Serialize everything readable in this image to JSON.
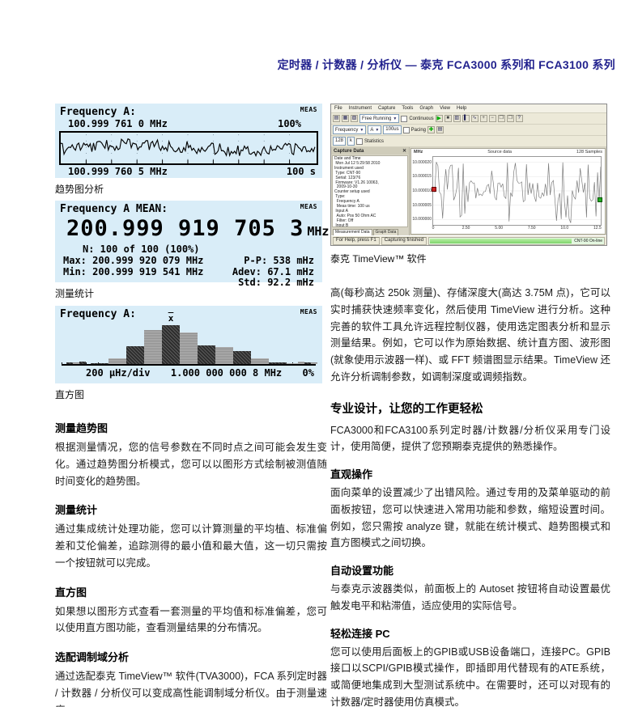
{
  "page": {
    "title": "定时器 / 计数器 / 分析仪 — 泰克 FCA3000 系列和 FCA3100 系列"
  },
  "screens": {
    "trend": {
      "label": "Frequency A:",
      "meas": "MEAS",
      "top_value": "100.999 761 0 MHz",
      "top_pct": "100%",
      "bottom_value": "100.999 760 5 MHz",
      "bottom_time": "100 s",
      "caption": "趋势图分析"
    },
    "stats": {
      "label": "Frequency A MEAN:",
      "meas": "MEAS",
      "big_value": "200.999 919 705 3",
      "big_unit": "MHz",
      "n_line": "N: 100 of 100 (100%)",
      "max_line": "Max: 200.999 920 079 MHz",
      "min_line": "Min: 200.999 919 541 MHz",
      "pp_line": "P-P: 538 mHz",
      "adev_line": "Adev: 67.1 mHz",
      "std_line": "Std: 92.2 mHz",
      "caption": "测量统计"
    },
    "hist": {
      "label": "Frequency A:",
      "meas": "MEAS",
      "mean_marker": "x",
      "axis_left": "200 μHz/div",
      "axis_center": "1.000 000 000 8 MHz",
      "axis_right": "0%",
      "caption": "直方图"
    }
  },
  "timeview": {
    "menu": [
      "File",
      "Instrument",
      "Capture",
      "Tools",
      "Graph",
      "View",
      "Help"
    ],
    "toolbar": {
      "mode": "Free Running",
      "continuous": "Continuous",
      "function": "Frequency",
      "channel": "A",
      "meas_time": "100us",
      "pacing": "Pacing",
      "samples": "128",
      "unit": "k",
      "statistics": "Statistics"
    },
    "panel": {
      "title": "Capture Data",
      "lines": [
        "Date and Time",
        " Mon Jul 12 5:29:58 2010",
        "Instrument used",
        " Type: CNT-90",
        " Serial: 123/76",
        " Firmware: V1.26 10063,",
        "  2009-10-30",
        "Counter setup used",
        " Type:",
        "  Frequency A",
        "  Meas time: 100 us",
        " Input A",
        "  Auto: Pos 50 Ohm AC",
        "  Filter: Off",
        " Input B",
        "  Auto: Pos 50 Ohm AC",
        "  Filter: Off",
        " External timing:",
        "  Off",
        " Hold Off:",
        "  Off",
        " Statistics:",
        "  Off",
        " Miscellaneous:",
        "  Reference Oscillator:",
        "   Auto"
      ]
    },
    "graph": {
      "unit": "MHz",
      "title": "Source data",
      "right": "128 Samples",
      "y_ticks": [
        "10.000020",
        "10.000015",
        "10.000010",
        "10.000005",
        "10.000000"
      ],
      "x_ticks": [
        "0",
        "2.50",
        "5.00",
        "7.50",
        "10.0",
        "12.5"
      ]
    },
    "tabs": [
      "Measurement Data",
      "Graph Data"
    ],
    "status": {
      "help": "For Help, press F1",
      "mid": "Capturing finished",
      "device": "CNT-90 On-line"
    },
    "caption": "泰克 TimeView™ 软件"
  },
  "left_sections": [
    {
      "heading": "测量趋势图",
      "body": "根据测量情况，您的信号参数在不同时点之间可能会发生变化。通过趋势图分析模式，您可以以图形方式绘制被测值随时间变化的趋势图。"
    },
    {
      "heading": "测量统计",
      "body": "通过集成统计处理功能，您可以计算测量的平均植、标准偏差和艾伦偏差，追踪测得的最小值和最大值，这一切只需按一个按钮就可以完成。"
    },
    {
      "heading": "直方图",
      "body": "如果想以图形方式查看一套测量的平均值和标准偏差，您可以使用直方图功能，查看测量结果的分布情况。"
    },
    {
      "heading": "选配调制域分析",
      "body": "通过选配泰克 TimeView™ 软件(TVA3000)，FCA 系列定时器 / 计数器 / 分析仪可以变成高性能调制域分析仪。由于测量速度"
    }
  ],
  "right": {
    "intro": "高(每秒高达 250k 测量)、存储深度大(高达 3.75M 点)，它可以实时捕获快速频率变化，然后使用 TimeView 进行分析。这种完善的软件工具允许远程控制仪器，使用选定图表分析和显示测量结果。例如，它可以作为原始数据、统计直方图、波形图(就象使用示波器一样)、或 FFT 频谱图显示结果。TimeView 还允许分析调制参数，如调制深度或调频指数。",
    "heading": "专业设计，让您的工作更轻松",
    "body": "FCA3000和FCA3100系列定时器/计数器/分析仪采用专门设计，使用简便，提供了您预期泰克提供的熟悉操作。",
    "subs": [
      {
        "heading": "直观操作",
        "body": "面向菜单的设置减少了出错风险。通过专用的及菜单驱动的前面板按钮，您可以快速进入常用功能和参数，缩短设置时间。例如，您只需按 analyze 键，就能在统计模式、趋势图模式和直方图模式之间切换。"
      },
      {
        "heading": "自动设置功能",
        "body": "与泰克示波器类似，前面板上的 Autoset 按钮将自动设置最优触发电平和粘滞值，适应使用的实际信号。"
      },
      {
        "heading": "轻松连接 PC",
        "body": "您可以使用后面板上的GPIB或USB设备端口，连接PC。GPIB接口以SCPI/GPIB模式操作，即插即用代替现有的ATE系统，或简便地集成到大型测试系统中。在需要时，还可以对现有的计数器/定时器使用仿真模式。"
      }
    ]
  },
  "chart_data": [
    {
      "type": "line",
      "title": "Frequency A trend plot",
      "y_top_label": "100.999 761 0 MHz",
      "y_bottom_label": "100.999 760 5 MHz",
      "x_span": "100 s",
      "right_top_label": "100%",
      "note": "noisy frequency-vs-time trace meandering between the two labelled frequency limits"
    },
    {
      "type": "bar",
      "title": "Frequency A histogram",
      "x_scale": "200 μHz/div",
      "x_center": "1.000 000 000 8 MHz",
      "right_label": "0%",
      "values": [
        3,
        14,
        45,
        85,
        96,
        78,
        46,
        42,
        33,
        15,
        4,
        2
      ],
      "bar_styles": [
        "d",
        "g",
        "d",
        "g",
        "d",
        "g",
        "d",
        "g",
        "d",
        "g",
        "d",
        "g"
      ],
      "mean_index": 4
    },
    {
      "type": "line",
      "title": "TimeView Source data",
      "ylabel": "MHz",
      "y_ticks": [
        "10.000020",
        "10.000015",
        "10.000010",
        "10.000005",
        "10.000000"
      ],
      "x_ticks": [
        "0",
        "2.50",
        "5.00",
        "7.50",
        "10.0",
        "12.5"
      ],
      "samples": "128 Samples",
      "note": "rapidly varying frequency capture with tall spikes"
    }
  ],
  "colors": {
    "accent": "#22228e",
    "screen_bg": "#d9edf8",
    "window_chrome": "#ece9d8",
    "progress_green": "#7ed46a",
    "marker_red": "#cc2222",
    "marker_green": "#22aa22"
  }
}
